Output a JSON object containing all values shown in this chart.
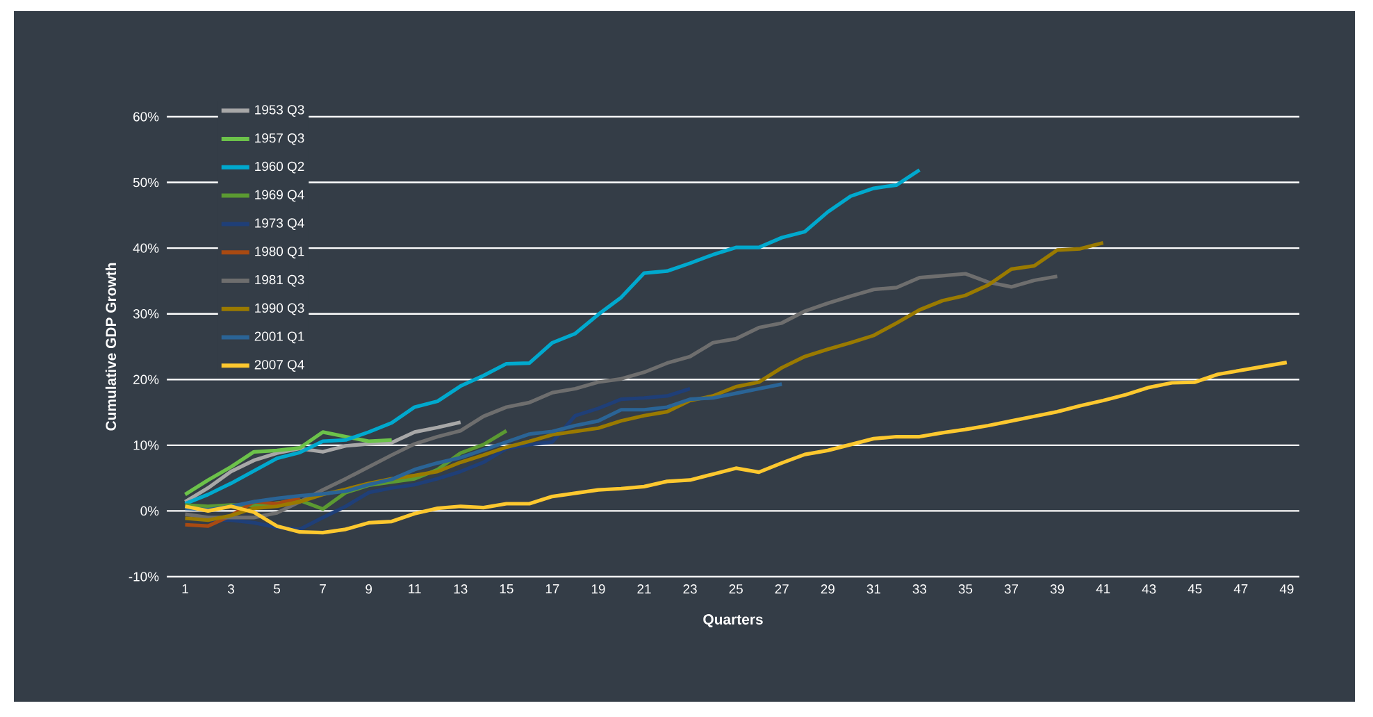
{
  "chart_data": {
    "type": "line",
    "xlabel": "Quarters",
    "ylabel": "Cumulative GDP Growth",
    "series": [
      {
        "name": "1953 Q3",
        "color": "#a8a8a8",
        "x": [
          1,
          2,
          3,
          4,
          5,
          6,
          7,
          8,
          9,
          10,
          11,
          12,
          13
        ],
        "values": [
          1.4,
          3.5,
          6.0,
          7.7,
          8.8,
          9.5,
          9.0,
          9.9,
          10.2,
          10.4,
          12.0,
          12.7,
          13.5
        ]
      },
      {
        "name": "1957 Q3",
        "color": "#6cc24a",
        "x": [
          1,
          2,
          3,
          4,
          5,
          6,
          7,
          8,
          9,
          10
        ],
        "values": [
          2.5,
          4.7,
          6.7,
          9.0,
          9.2,
          9.6,
          12.0,
          11.3,
          10.6,
          10.8
        ]
      },
      {
        "name": "1960 Q2",
        "color": "#00a9ce",
        "x": [
          1,
          2,
          3,
          4,
          5,
          6,
          7,
          8,
          9,
          10,
          11,
          12,
          13,
          14,
          15,
          16,
          17,
          18,
          19,
          20,
          21,
          22,
          23,
          24,
          25,
          26,
          27,
          28,
          29,
          30,
          31,
          32,
          33
        ],
        "values": [
          1.1,
          2.5,
          4.2,
          6.1,
          8.0,
          8.9,
          10.6,
          10.8,
          12.0,
          13.4,
          15.8,
          16.7,
          19.0,
          20.6,
          22.4,
          22.5,
          25.6,
          27.0,
          29.9,
          32.5,
          36.2,
          36.5,
          37.7,
          39.0,
          40.1,
          40.1,
          41.6,
          42.5,
          45.5,
          47.9,
          49.1,
          49.6,
          51.9
        ]
      },
      {
        "name": "1969 Q4",
        "color": "#5b9a32",
        "x": [
          1,
          2,
          3,
          4,
          5,
          6,
          7,
          8,
          9,
          10,
          11,
          12,
          13,
          14,
          15
        ],
        "values": [
          0.9,
          0.7,
          0.9,
          0.8,
          1.2,
          1.6,
          0.3,
          2.8,
          3.9,
          4.4,
          4.9,
          6.3,
          8.8,
          10.1,
          12.2
        ]
      },
      {
        "name": "1973 Q4",
        "color": "#1f3f78",
        "x": [
          1,
          2,
          3,
          4,
          5,
          6,
          7,
          8,
          9,
          10,
          11,
          12,
          13,
          14,
          15,
          16,
          17,
          18,
          19,
          20,
          21,
          22,
          23
        ],
        "values": [
          -1.1,
          -1.4,
          -1.4,
          -1.8,
          -2.5,
          -2.8,
          -1.0,
          0.7,
          2.8,
          3.5,
          4.0,
          4.9,
          6.0,
          7.4,
          9.5,
          10.1,
          10.5,
          14.5,
          15.6,
          17.0,
          17.2,
          17.5,
          18.6
        ]
      },
      {
        "name": "1980 Q1",
        "color": "#a84a12",
        "x": [
          1,
          2,
          3,
          4,
          5,
          6
        ],
        "values": [
          -2.1,
          -2.3,
          -0.7,
          1.4,
          1.1,
          2.0
        ]
      },
      {
        "name": "1981 Q3",
        "color": "#6e6e6e",
        "x": [
          1,
          2,
          3,
          4,
          5,
          6,
          7,
          8,
          9,
          10,
          11,
          12,
          13,
          14,
          15,
          16,
          17,
          18,
          19,
          20,
          21,
          22,
          23,
          24,
          25,
          26,
          27,
          28,
          29,
          30,
          31,
          32,
          33,
          34,
          35,
          36,
          37,
          38,
          39
        ],
        "values": [
          -0.5,
          -1.0,
          -1.0,
          -1.0,
          -0.3,
          1.4,
          3.2,
          4.9,
          6.7,
          8.5,
          10.2,
          11.3,
          12.2,
          14.4,
          15.8,
          16.5,
          18.0,
          18.6,
          19.6,
          20.1,
          21.1,
          22.5,
          23.5,
          25.6,
          26.2,
          27.9,
          28.6,
          30.4,
          31.6,
          32.7,
          33.7,
          34.0,
          35.5,
          35.8,
          36.1,
          34.8,
          34.1,
          35.1,
          35.7
        ]
      },
      {
        "name": "1990 Q3",
        "color": "#9a7a00",
        "x": [
          1,
          2,
          3,
          4,
          5,
          6,
          7,
          8,
          9,
          10,
          11,
          12,
          13,
          14,
          15,
          16,
          17,
          18,
          19,
          20,
          21,
          22,
          23,
          24,
          25,
          26,
          27,
          28,
          29,
          30,
          31,
          32,
          33,
          34,
          35,
          36,
          37,
          38,
          39,
          40,
          41
        ],
        "values": [
          -1.1,
          -1.4,
          -0.7,
          0.4,
          0.7,
          1.4,
          2.5,
          3.3,
          4.2,
          4.9,
          5.4,
          6.0,
          7.4,
          8.5,
          9.7,
          10.6,
          11.6,
          12.1,
          12.6,
          13.7,
          14.5,
          15.1,
          16.8,
          17.5,
          18.9,
          19.6,
          21.8,
          23.5,
          24.6,
          25.6,
          26.7,
          28.6,
          30.6,
          32.0,
          32.8,
          34.4,
          36.8,
          37.3,
          39.7,
          39.9,
          40.8
        ]
      },
      {
        "name": "2001 Q1",
        "color": "#2a6496",
        "x": [
          1,
          2,
          3,
          4,
          5,
          6,
          7,
          8,
          9,
          10,
          11,
          12,
          13,
          14,
          15,
          16,
          17,
          18,
          19,
          20,
          21,
          22,
          23,
          24,
          25,
          26,
          27
        ],
        "values": [
          0.4,
          0.2,
          0.7,
          1.4,
          1.9,
          2.3,
          2.6,
          3.0,
          4.0,
          4.8,
          6.3,
          7.3,
          8.1,
          9.3,
          10.5,
          11.7,
          12.1,
          13.0,
          13.7,
          15.4,
          15.4,
          15.8,
          17.0,
          17.2,
          17.9,
          18.6,
          19.3
        ]
      },
      {
        "name": "2007 Q4",
        "color": "#fdc82f",
        "x": [
          1,
          2,
          3,
          4,
          5,
          6,
          7,
          8,
          9,
          10,
          11,
          12,
          13,
          14,
          15,
          16,
          17,
          18,
          19,
          20,
          21,
          22,
          23,
          24,
          25,
          26,
          27,
          28,
          29,
          30,
          31,
          32,
          33,
          34,
          35,
          36,
          37,
          38,
          39,
          40,
          41,
          42,
          43,
          44,
          45,
          46,
          47,
          48,
          49
        ],
        "values": [
          0.7,
          0.0,
          0.7,
          -0.2,
          -2.3,
          -3.2,
          -3.3,
          -2.8,
          -1.8,
          -1.6,
          -0.4,
          0.4,
          0.7,
          0.5,
          1.1,
          1.1,
          2.2,
          2.7,
          3.2,
          3.4,
          3.7,
          4.5,
          4.7,
          5.6,
          6.5,
          5.9,
          7.3,
          8.6,
          9.2,
          10.1,
          11.0,
          11.3,
          11.3,
          11.9,
          12.4,
          13.0,
          13.7,
          14.4,
          15.1,
          16.0,
          16.8,
          17.7,
          18.8,
          19.5,
          19.6,
          20.8,
          21.4,
          22.0,
          22.6
        ]
      }
    ],
    "xlim": [
      0.2,
      49.55
    ],
    "xticks": [
      1,
      3,
      5,
      7,
      9,
      11,
      13,
      15,
      17,
      19,
      21,
      23,
      25,
      27,
      29,
      31,
      33,
      35,
      37,
      39,
      41,
      43,
      45,
      47,
      49
    ],
    "ylim": [
      -10,
      60
    ],
    "yticks": [
      {
        "value": -10,
        "label": "-10%"
      },
      {
        "value": 0,
        "label": "0%"
      },
      {
        "value": 10,
        "label": "10%"
      },
      {
        "value": 20,
        "label": "20%"
      },
      {
        "value": 30,
        "label": "30%"
      },
      {
        "value": 40,
        "label": "40%"
      },
      {
        "value": 50,
        "label": "50%"
      },
      {
        "value": 60,
        "label": "60%"
      }
    ],
    "grid": "y",
    "legend": "top left",
    "marker": "none",
    "line_style": "solid"
  }
}
